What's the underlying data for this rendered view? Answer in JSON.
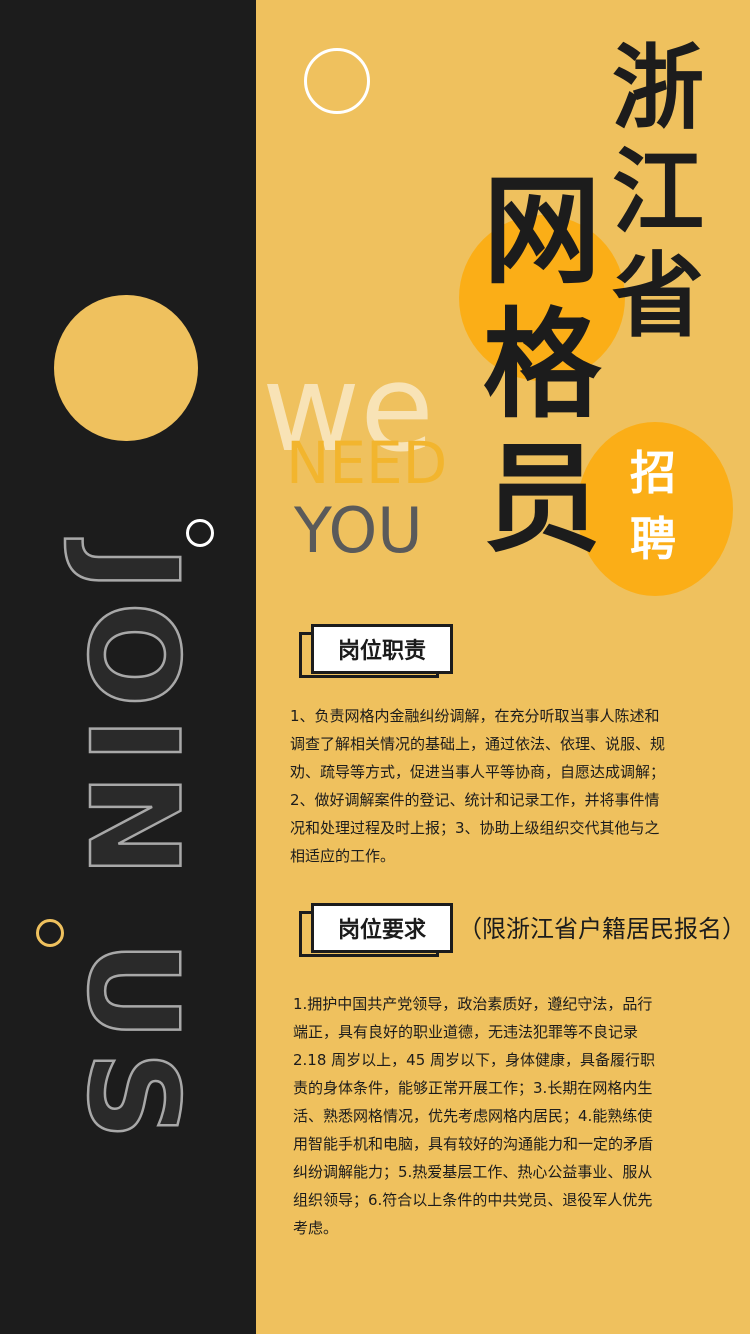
{
  "colors": {
    "dark": "#1c1c1c",
    "yellow": "#efc15e",
    "orange": "#fbae17"
  },
  "decor": {
    "join_text": "JOIN US"
  },
  "slogan": {
    "we": "we",
    "need": "NEED",
    "you": "YOU"
  },
  "title": {
    "province": [
      "浙",
      "江",
      "省"
    ],
    "role": [
      "网",
      "格",
      "员"
    ],
    "recruit": [
      "招",
      "聘"
    ]
  },
  "sections": {
    "duty": {
      "label": "岗位职责",
      "lines": [
        "1、负责网格内金融纠纷调解，在充分听取当事人陈述和",
        "调查了解相关情况的基础上，通过依法、依理、说服、规",
        "劝、疏导等方式，促进当事人平等协商，自愿达成调解；",
        "2、做好调解案件的登记、统计和记录工作，并将事件情",
        "况和处理过程及时上报；3、协助上级组织交代其他与之",
        "相适应的工作。"
      ]
    },
    "requirements": {
      "label": "岗位要求",
      "note": "（限浙江省户籍居民报名）",
      "lines": [
        "1.拥护中国共产党领导，政治素质好，遵纪守法，品行",
        "端正，具有良好的职业道德，无违法犯罪等不良记录",
        "2.18 周岁以上，45 周岁以下，身体健康，具备履行职",
        "责的身体条件，能够正常开展工作；3.长期在网格内生",
        "活、熟悉网格情况，优先考虑网格内居民；4.能熟练使",
        "用智能手机和电脑，具有较好的沟通能力和一定的矛盾",
        "纠纷调解能力；5.热爱基层工作、热心公益事业、服从",
        "组织领导；6.符合以上条件的中共党员、退役军人优先",
        "考虑。"
      ]
    }
  }
}
